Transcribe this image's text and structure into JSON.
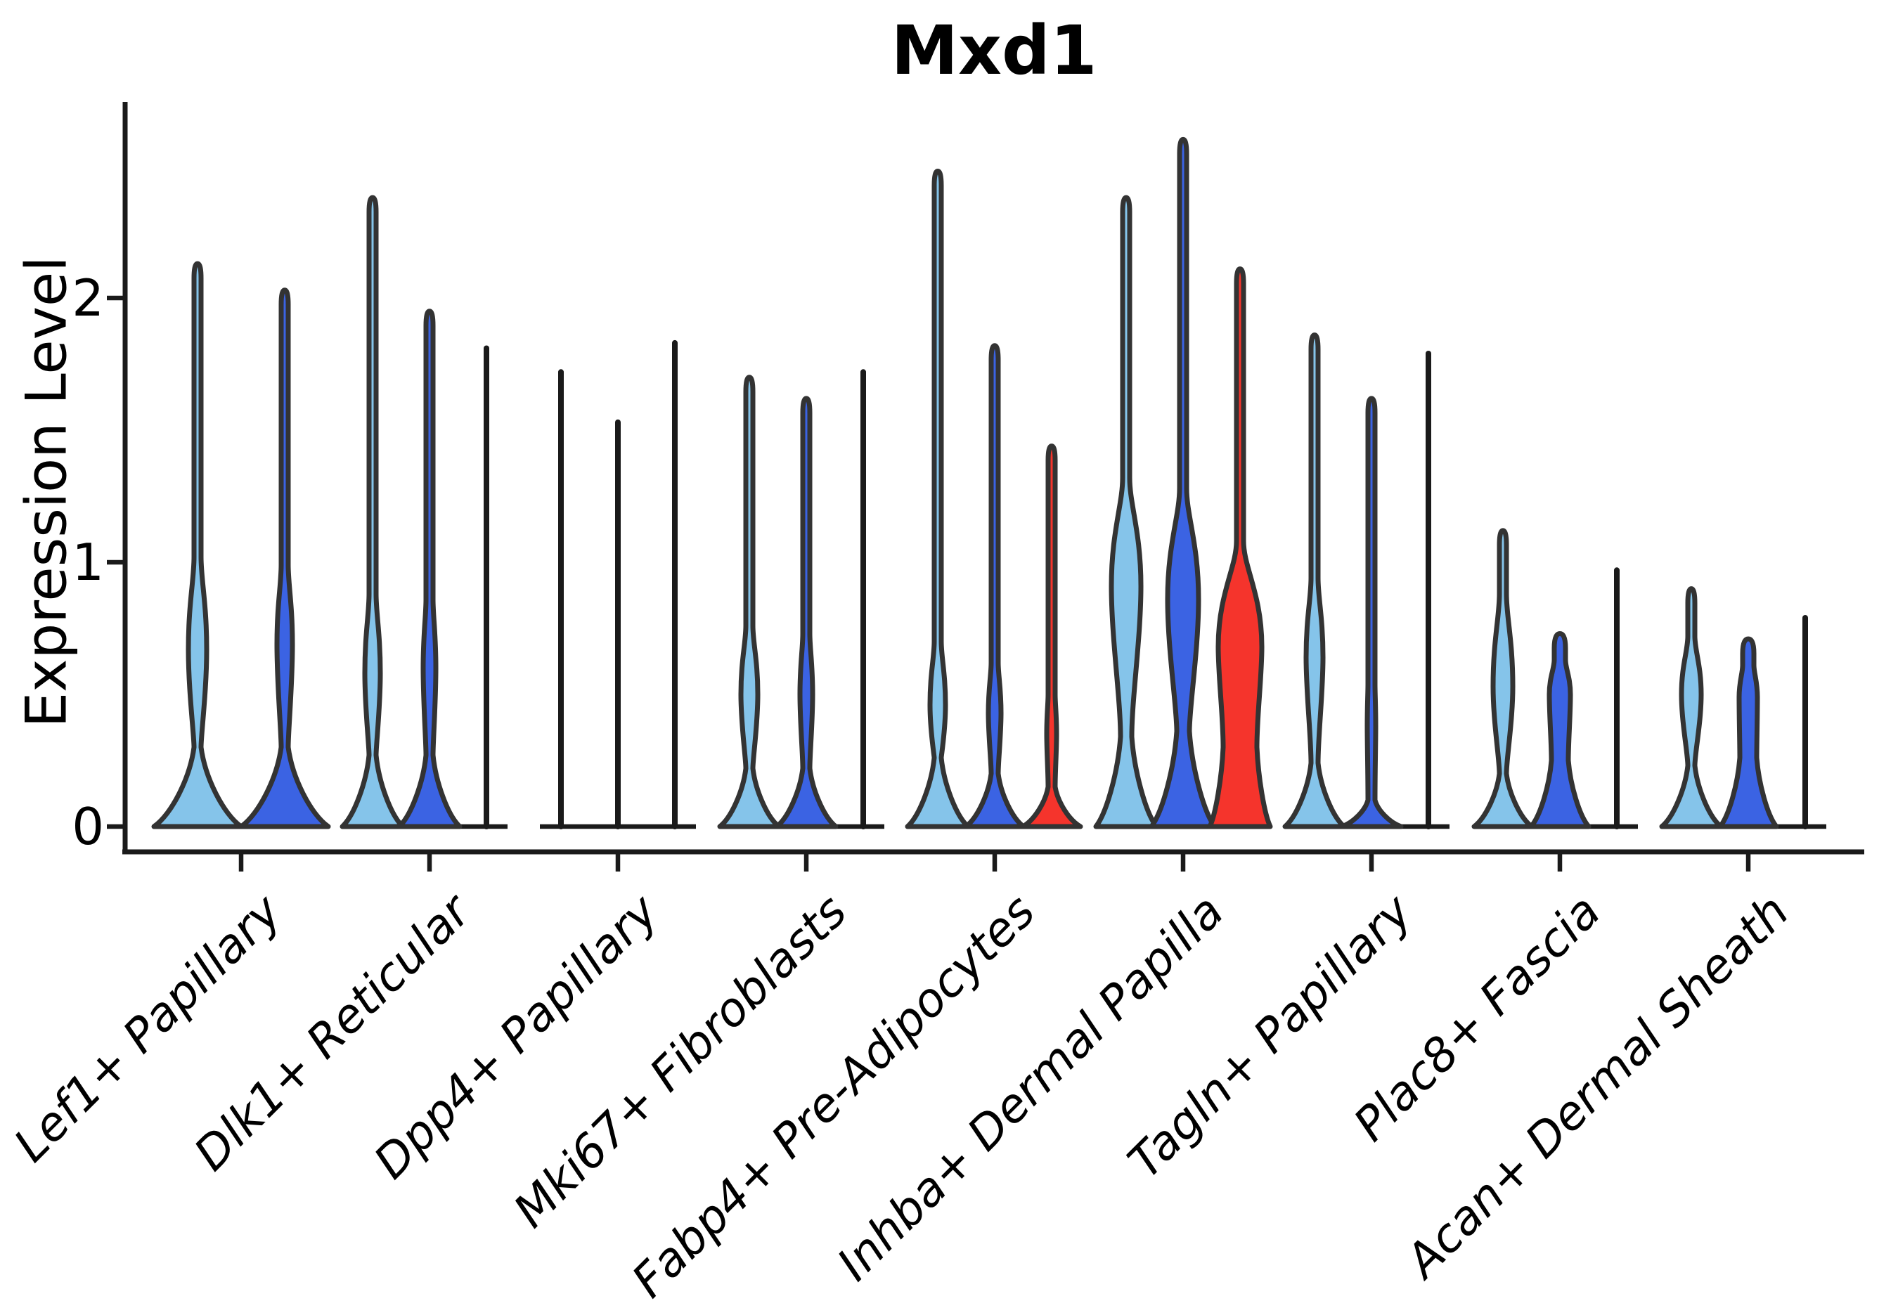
{
  "title": "Mxd1",
  "ylabel": "Expression Level",
  "yticks": [
    "0",
    "1",
    "2"
  ],
  "colors": {
    "light_blue": "#85C4EA",
    "royal_blue": "#3B63E3",
    "red": "#F5342C",
    "outline": "#333333",
    "axis": "#1a1a1a"
  },
  "chart_data": {
    "type": "violin",
    "title": "Mxd1",
    "xlabel": "",
    "ylabel": "Expression Level",
    "ylim": [
      0,
      2.75
    ],
    "yticks": [
      0,
      1,
      2
    ],
    "grid": false,
    "legend": "none",
    "split_colors": [
      "light_blue",
      "royal_blue",
      "red"
    ],
    "categories": [
      "Lef1+ Papillary",
      "Dlk1+ Reticular",
      "Dpp4+ Papillary",
      "Mki67+ Fibroblasts",
      "Fabp4+ Pre-Adipocytes",
      "Inhba+ Dermal Papilla",
      "Tagln+ Papillary",
      "Plac8+ Fascia",
      "Acan+ Dermal Sheath"
    ],
    "groups": [
      {
        "label": "Lef1+ Papillary",
        "violins": [
          {
            "split": 0,
            "shape": "violin",
            "max": 2.13,
            "base_hw": 62,
            "waist": 0.3,
            "bulge": [
              0.36,
              0.67,
              1.02,
              13
            ]
          },
          {
            "split": 1,
            "shape": "violin",
            "max": 2.03,
            "base_hw": 62,
            "waist": 0.3,
            "bulge": [
              0.38,
              0.69,
              0.99,
              11
            ]
          }
        ]
      },
      {
        "label": "Dlk1+ Reticular",
        "violins": [
          {
            "split": 0,
            "shape": "violin",
            "max": 2.38,
            "base_hw": 43,
            "waist": 0.27,
            "bulge": [
              0.32,
              0.58,
              0.88,
              11
            ]
          },
          {
            "split": 1,
            "shape": "violin",
            "max": 1.95,
            "base_hw": 43,
            "waist": 0.27,
            "bulge": [
              0.34,
              0.6,
              0.86,
              9
            ]
          },
          {
            "split": 2,
            "shape": "line",
            "max": 1.81
          }
        ]
      },
      {
        "label": "Dpp4+ Papillary",
        "violins": [
          {
            "split": 0,
            "shape": "line",
            "max": 1.72
          },
          {
            "split": 1,
            "shape": "line",
            "max": 1.53
          },
          {
            "split": 2,
            "shape": "line",
            "max": 1.83
          }
        ]
      },
      {
        "label": "Mki67+ Fibroblasts",
        "violins": [
          {
            "split": 0,
            "shape": "violin",
            "max": 1.7,
            "base_hw": 42,
            "waist": 0.22,
            "bulge": [
              0.27,
              0.5,
              0.76,
              12
            ]
          },
          {
            "split": 1,
            "shape": "violin",
            "max": 1.62,
            "base_hw": 42,
            "waist": 0.22,
            "bulge": [
              0.29,
              0.5,
              0.73,
              9
            ]
          },
          {
            "split": 2,
            "shape": "line",
            "max": 1.72
          }
        ]
      },
      {
        "label": "Fabp4+ Pre-Adipocytes",
        "violins": [
          {
            "split": 0,
            "shape": "violin",
            "max": 2.48,
            "base_hw": 43,
            "waist": 0.26,
            "bulge": [
              0.27,
              0.46,
              0.7,
              11
            ]
          },
          {
            "split": 1,
            "shape": "violin",
            "max": 1.82,
            "base_hw": 41,
            "waist": 0.2,
            "bulge": [
              0.26,
              0.43,
              0.62,
              9
            ]
          },
          {
            "split": 2,
            "shape": "violin",
            "max": 1.44,
            "base_hw": 41,
            "waist": 0.15,
            "bulge": [
              0.22,
              0.35,
              0.5,
              7
            ]
          }
        ]
      },
      {
        "label": "Inhba+ Dermal Papilla",
        "violins": [
          {
            "split": 0,
            "shape": "violin",
            "max": 2.38,
            "base_hw": 43,
            "waist": 0.34,
            "waist_hw": 8,
            "bulge": [
              0.52,
              0.91,
              1.32,
              21
            ]
          },
          {
            "split": 1,
            "shape": "violin",
            "max": 2.6,
            "base_hw": 45,
            "waist": 0.36,
            "waist_hw": 9,
            "bulge": [
              0.48,
              0.86,
              1.28,
              22
            ]
          },
          {
            "split": 2,
            "shape": "violin",
            "max": 2.11,
            "base_hw": 43,
            "waist": 0.3,
            "waist_hw": 24,
            "bulge": [
              0.45,
              0.68,
              1.08,
              31
            ]
          }
        ]
      },
      {
        "label": "Tagln+ Papillary",
        "violins": [
          {
            "split": 0,
            "shape": "violin",
            "max": 1.86,
            "base_hw": 42,
            "waist": 0.24,
            "bulge": [
              0.37,
              0.64,
              0.94,
              12
            ]
          },
          {
            "split": 1,
            "shape": "violin",
            "max": 1.62,
            "base_hw": 42,
            "waist": 0.1,
            "bulge": [
              0.24,
              0.38,
              0.54,
              6
            ]
          },
          {
            "split": 2,
            "shape": "line",
            "max": 1.79
          }
        ]
      },
      {
        "label": "Plac8+ Fascia",
        "violins": [
          {
            "split": 0,
            "shape": "violin",
            "max": 1.12,
            "base_hw": 41,
            "waist": 0.2,
            "bulge": [
              0.27,
              0.53,
              0.88,
              14
            ]
          },
          {
            "split": 1,
            "shape": "column",
            "max": 0.73,
            "base_hw": 41,
            "waist": 0.25,
            "waist_hw": 12,
            "bulge": [
              0.34,
              0.5,
              0.63,
              15
            ],
            "stub_hw": 8
          },
          {
            "split": 2,
            "shape": "line",
            "max": 0.97
          }
        ]
      },
      {
        "label": "Acan+ Dermal Sheath",
        "violins": [
          {
            "split": 0,
            "shape": "violin",
            "max": 0.9,
            "base_hw": 42,
            "waist": 0.23,
            "bulge": [
              0.29,
              0.5,
              0.72,
              14
            ]
          },
          {
            "split": 1,
            "shape": "column",
            "max": 0.71,
            "base_hw": 40,
            "waist": 0.26,
            "waist_hw": 12,
            "bulge": [
              0.33,
              0.49,
              0.61,
              13
            ],
            "stub_hw": 8
          },
          {
            "split": 2,
            "shape": "line",
            "max": 0.79
          }
        ]
      }
    ]
  }
}
